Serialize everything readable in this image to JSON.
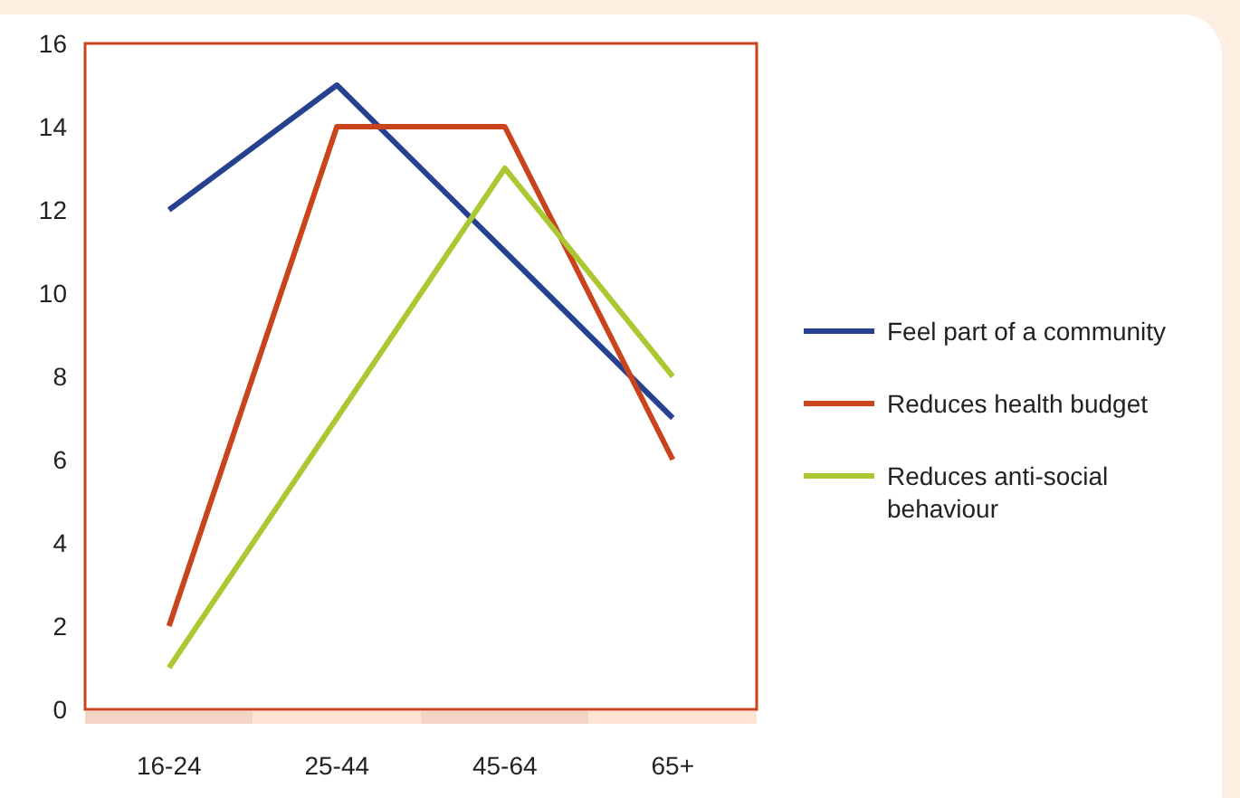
{
  "chart_data": {
    "type": "line",
    "categories": [
      "16-24",
      "25-44",
      "45-64",
      "65+"
    ],
    "series": [
      {
        "name": "Feel part of a community",
        "color": "#25418f",
        "values": [
          12,
          15,
          11,
          7
        ]
      },
      {
        "name": "Reduces health budget",
        "color": "#c9431c",
        "values": [
          2,
          14,
          14,
          6
        ]
      },
      {
        "name": "Reduces anti-social behaviour",
        "color": "#a9c832",
        "values": [
          1,
          7,
          13,
          8
        ]
      }
    ],
    "ylim": [
      0,
      16
    ],
    "yticks": [
      0,
      2,
      4,
      6,
      8,
      10,
      12,
      14,
      16
    ],
    "legend": "right",
    "grid": false,
    "marker": "none",
    "line_style": "solid"
  }
}
